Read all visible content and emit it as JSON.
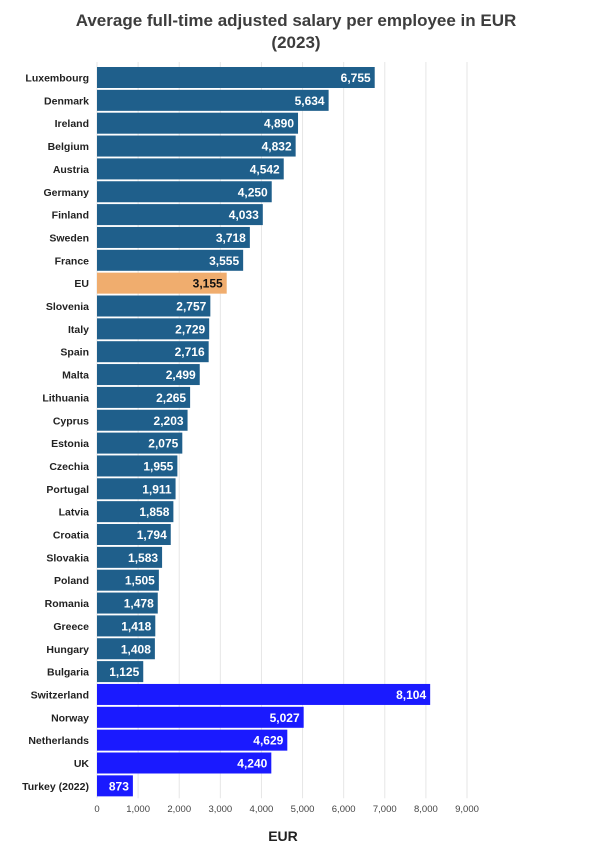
{
  "chart_data": {
    "type": "bar",
    "orientation": "horizontal",
    "title": "Average full-time adjusted salary per employee in EUR (2023)",
    "title_lines": [
      "Average full-time adjusted salary per employee in EUR",
      "(2023)"
    ],
    "xlabel": "EUR",
    "ylabel": "",
    "xlim": [
      0,
      9000
    ],
    "x_ticks": [
      0,
      1000,
      2000,
      3000,
      4000,
      5000,
      6000,
      7000,
      8000,
      9000
    ],
    "x_tick_labels": [
      "0",
      "1,000",
      "2,000",
      "3,000",
      "4,000",
      "5,000",
      "6,000",
      "7,000",
      "8,000",
      "9,000"
    ],
    "grid": true,
    "categories": [
      "Luxembourg",
      "Denmark",
      "Ireland",
      "Belgium",
      "Austria",
      "Germany",
      "Finland",
      "Sweden",
      "France",
      "EU",
      "Slovenia",
      "Italy",
      "Spain",
      "Malta",
      "Lithuania",
      "Cyprus",
      "Estonia",
      "Czechia",
      "Portugal",
      "Latvia",
      "Croatia",
      "Slovakia",
      "Poland",
      "Romania",
      "Greece",
      "Hungary",
      "Bulgaria",
      "Switzerland",
      "Norway",
      "Netherlands",
      "UK",
      "Turkey (2022)"
    ],
    "values": [
      6755,
      5634,
      4890,
      4832,
      4542,
      4250,
      4033,
      3718,
      3555,
      3155,
      2757,
      2729,
      2716,
      2499,
      2265,
      2203,
      2075,
      1955,
      1911,
      1858,
      1794,
      1583,
      1505,
      1478,
      1418,
      1408,
      1125,
      8104,
      5027,
      4629,
      4240,
      873
    ],
    "value_labels": [
      "6,755",
      "5,634",
      "4,890",
      "4,832",
      "4,542",
      "4,250",
      "4,033",
      "3,718",
      "3,555",
      "3,155",
      "2,757",
      "2,729",
      "2,716",
      "2,499",
      "2,265",
      "2,203",
      "2,075",
      "1,955",
      "1,911",
      "1,858",
      "1,794",
      "1,583",
      "1,505",
      "1,478",
      "1,418",
      "1,408",
      "1,125",
      "8,104",
      "5,027",
      "4,629",
      "4,240",
      "873"
    ],
    "groups": [
      "eu_member",
      "eu_member",
      "eu_member",
      "eu_member",
      "eu_member",
      "eu_member",
      "eu_member",
      "eu_member",
      "eu_member",
      "eu_average",
      "eu_member",
      "eu_member",
      "eu_member",
      "eu_member",
      "eu_member",
      "eu_member",
      "eu_member",
      "eu_member",
      "eu_member",
      "eu_member",
      "eu_member",
      "eu_member",
      "eu_member",
      "eu_member",
      "eu_member",
      "eu_member",
      "eu_member",
      "non_eu",
      "non_eu",
      "non_eu",
      "non_eu",
      "non_eu"
    ],
    "colors": {
      "eu_member": "#1f5f8b",
      "eu_average": "#f0ad6e",
      "non_eu": "#1a1aff",
      "label_on_dark": "#ffffff",
      "label_on_light": "#111111"
    }
  }
}
